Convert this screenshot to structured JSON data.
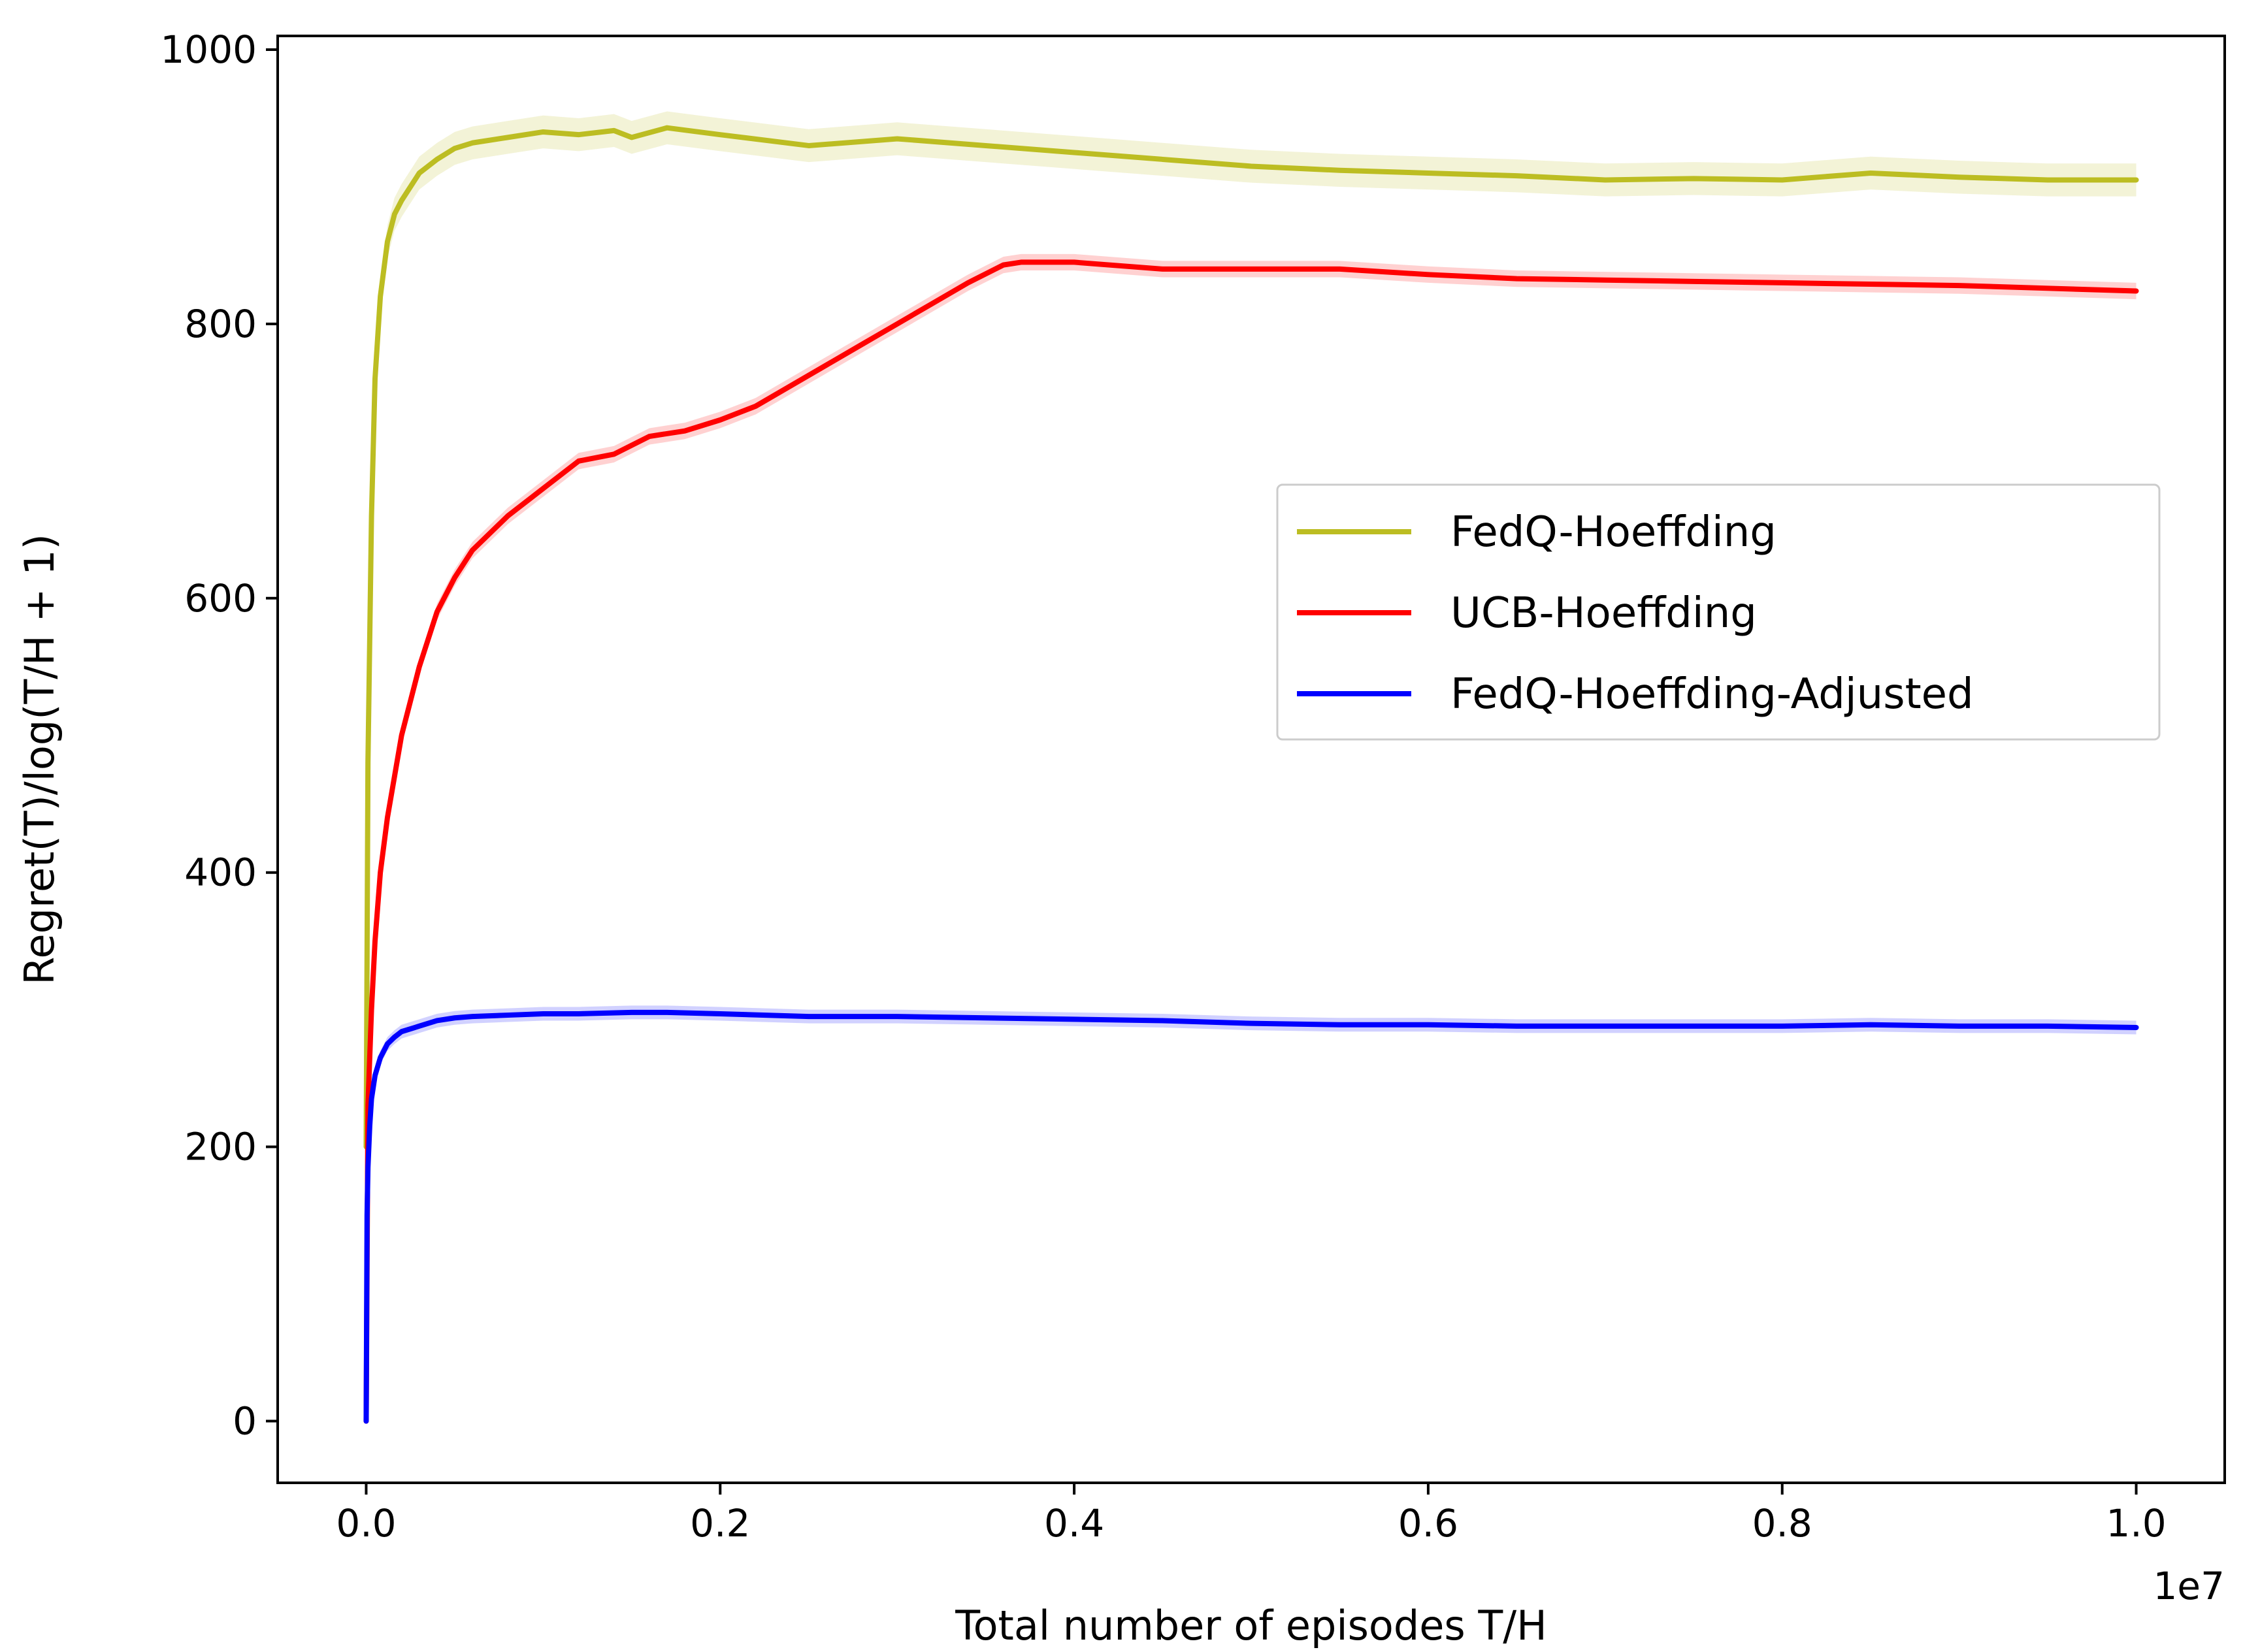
{
  "chart_data": {
    "type": "line",
    "title": "",
    "xlabel": "Total number of episodes T/H",
    "ylabel": "Regret(T)/log(T/H + 1)",
    "x_offset_label": "1e7",
    "xlim": [
      -0.05,
      1.05
    ],
    "ylim": [
      -45,
      1010
    ],
    "x_ticks": [
      0.0,
      0.2,
      0.4,
      0.6,
      0.8,
      1.0
    ],
    "x_tick_labels": [
      "0.0",
      "0.2",
      "0.4",
      "0.6",
      "0.8",
      "1.0"
    ],
    "y_ticks": [
      0,
      200,
      400,
      600,
      800,
      1000
    ],
    "y_tick_labels": [
      "0",
      "200",
      "400",
      "600",
      "800",
      "1000"
    ],
    "grid": false,
    "legend_position": "center-right",
    "series": [
      {
        "name": "FedQ-Hoeffding",
        "color": "#bcbd22",
        "x": [
          0.0,
          0.001,
          0.003,
          0.005,
          0.008,
          0.012,
          0.016,
          0.02,
          0.03,
          0.04,
          0.05,
          0.06,
          0.08,
          0.1,
          0.12,
          0.14,
          0.15,
          0.17,
          0.2,
          0.25,
          0.3,
          0.35,
          0.4,
          0.45,
          0.5,
          0.55,
          0.6,
          0.65,
          0.7,
          0.75,
          0.8,
          0.85,
          0.9,
          0.95,
          1.0
        ],
        "y": [
          200,
          480,
          660,
          760,
          820,
          860,
          880,
          890,
          910,
          920,
          928,
          932,
          936,
          940,
          938,
          941,
          936,
          943,
          938,
          930,
          935,
          930,
          925,
          920,
          915,
          912,
          910,
          908,
          905,
          906,
          905,
          910,
          907,
          905,
          905
        ],
        "band": 12
      },
      {
        "name": "UCB-Hoeffding",
        "color": "#ff0000",
        "x": [
          0.0,
          0.001,
          0.003,
          0.005,
          0.008,
          0.012,
          0.016,
          0.02,
          0.03,
          0.04,
          0.05,
          0.06,
          0.08,
          0.1,
          0.12,
          0.14,
          0.16,
          0.18,
          0.2,
          0.22,
          0.24,
          0.26,
          0.28,
          0.3,
          0.32,
          0.34,
          0.36,
          0.37,
          0.4,
          0.45,
          0.5,
          0.55,
          0.6,
          0.65,
          0.7,
          0.75,
          0.8,
          0.85,
          0.9,
          0.95,
          1.0
        ],
        "y": [
          0,
          230,
          300,
          350,
          400,
          440,
          470,
          500,
          550,
          590,
          615,
          635,
          660,
          680,
          700,
          705,
          718,
          722,
          730,
          740,
          755,
          770,
          785,
          800,
          815,
          830,
          843,
          845,
          845,
          840,
          840,
          840,
          836,
          833,
          832,
          831,
          830,
          829,
          828,
          826,
          824
        ],
        "band": 6
      },
      {
        "name": "FedQ-Hoeffding-Adjusted",
        "color": "#0000ff",
        "x": [
          0.0,
          0.0005,
          0.001,
          0.002,
          0.003,
          0.005,
          0.008,
          0.012,
          0.016,
          0.02,
          0.03,
          0.04,
          0.05,
          0.06,
          0.08,
          0.1,
          0.12,
          0.15,
          0.17,
          0.2,
          0.25,
          0.3,
          0.35,
          0.4,
          0.45,
          0.5,
          0.55,
          0.6,
          0.65,
          0.7,
          0.75,
          0.8,
          0.85,
          0.9,
          0.95,
          1.0
        ],
        "y": [
          0,
          150,
          185,
          215,
          235,
          252,
          265,
          275,
          280,
          284,
          288,
          292,
          294,
          295,
          296,
          297,
          297,
          298,
          298,
          297,
          295,
          295,
          294,
          293,
          292,
          290,
          289,
          289,
          288,
          288,
          288,
          288,
          289,
          288,
          288,
          287
        ],
        "band": 5
      }
    ]
  }
}
